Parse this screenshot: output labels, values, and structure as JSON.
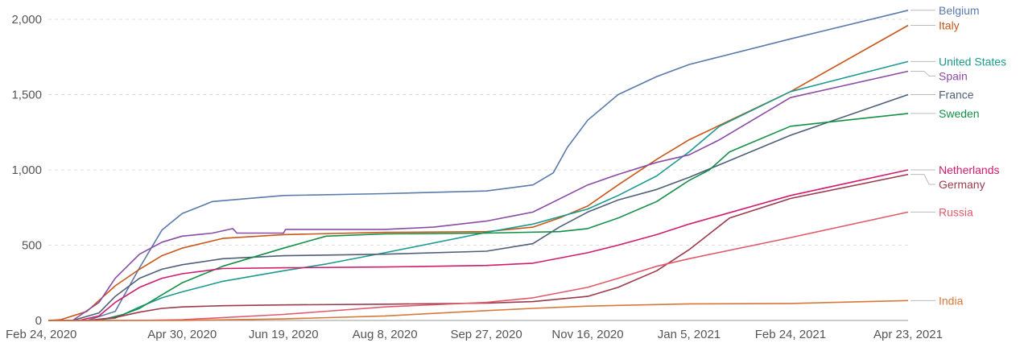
{
  "chart_data": {
    "type": "line",
    "x_type": "date",
    "x_range": [
      "2020-02-24",
      "2021-04-23"
    ],
    "x_ticks": [
      "2020-02-24",
      "2020-04-30",
      "2020-06-19",
      "2020-08-08",
      "2020-09-27",
      "2020-11-16",
      "2021-01-05",
      "2021-02-24",
      "2021-04-23"
    ],
    "x_tick_labels": [
      "Feb 24, 2020",
      "Apr 30, 2020",
      "Jun 19, 2020",
      "Aug 8, 2020",
      "Sep 27, 2020",
      "Nov 16, 2020",
      "Jan 5, 2021",
      "Feb 24, 2021",
      "Apr 23, 2021"
    ],
    "ylim": [
      0,
      2000
    ],
    "y_ticks": [
      0,
      500,
      1000,
      1500,
      2000
    ],
    "y_tick_labels": [
      "0",
      "500",
      "1,000",
      "1,500",
      "2,000"
    ],
    "grid": "horizontal dashed",
    "legend": "right, labels at line ends",
    "series": [
      {
        "name": "Belgium",
        "color": "#5a7aab",
        "points": [
          [
            "2020-02-24",
            0
          ],
          [
            "2020-03-14",
            0
          ],
          [
            "2020-03-28",
            60
          ],
          [
            "2020-04-09",
            350
          ],
          [
            "2020-04-20",
            600
          ],
          [
            "2020-04-30",
            710
          ],
          [
            "2020-05-15",
            790
          ],
          [
            "2020-06-19",
            830
          ],
          [
            "2020-08-08",
            842
          ],
          [
            "2020-09-27",
            860
          ],
          [
            "2020-10-20",
            900
          ],
          [
            "2020-10-30",
            980
          ],
          [
            "2020-11-06",
            1150
          ],
          [
            "2020-11-16",
            1330
          ],
          [
            "2020-12-01",
            1500
          ],
          [
            "2020-12-20",
            1620
          ],
          [
            "2021-01-05",
            1700
          ],
          [
            "2021-02-24",
            1870
          ],
          [
            "2021-04-23",
            2060
          ]
        ]
      },
      {
        "name": "Italy",
        "color": "#c8571a",
        "points": [
          [
            "2020-02-24",
            0
          ],
          [
            "2020-03-01",
            5
          ],
          [
            "2020-03-14",
            60
          ],
          [
            "2020-03-28",
            230
          ],
          [
            "2020-04-09",
            340
          ],
          [
            "2020-04-20",
            430
          ],
          [
            "2020-04-30",
            480
          ],
          [
            "2020-05-20",
            545
          ],
          [
            "2020-06-19",
            570
          ],
          [
            "2020-08-08",
            585
          ],
          [
            "2020-09-27",
            590
          ],
          [
            "2020-10-20",
            620
          ],
          [
            "2020-11-02",
            680
          ],
          [
            "2020-11-16",
            760
          ],
          [
            "2020-12-01",
            900
          ],
          [
            "2020-12-20",
            1070
          ],
          [
            "2021-01-05",
            1200
          ],
          [
            "2021-02-24",
            1520
          ],
          [
            "2021-04-23",
            1960
          ]
        ]
      },
      {
        "name": "United States",
        "color": "#1d9a8f",
        "points": [
          [
            "2020-02-24",
            0
          ],
          [
            "2020-03-14",
            0
          ],
          [
            "2020-03-28",
            15
          ],
          [
            "2020-04-09",
            90
          ],
          [
            "2020-04-20",
            150
          ],
          [
            "2020-04-30",
            190
          ],
          [
            "2020-05-20",
            260
          ],
          [
            "2020-06-19",
            330
          ],
          [
            "2020-07-10",
            375
          ],
          [
            "2020-08-08",
            450
          ],
          [
            "2020-09-27",
            585
          ],
          [
            "2020-10-20",
            640
          ],
          [
            "2020-11-16",
            740
          ],
          [
            "2020-12-01",
            830
          ],
          [
            "2020-12-20",
            960
          ],
          [
            "2021-01-05",
            1120
          ],
          [
            "2021-01-20",
            1290
          ],
          [
            "2021-02-24",
            1520
          ],
          [
            "2021-04-23",
            1720
          ]
        ]
      },
      {
        "name": "Spain",
        "color": "#8a4ba6",
        "points": [
          [
            "2020-02-24",
            0
          ],
          [
            "2020-03-07",
            0
          ],
          [
            "2020-03-20",
            120
          ],
          [
            "2020-03-28",
            280
          ],
          [
            "2020-04-09",
            440
          ],
          [
            "2020-04-20",
            520
          ],
          [
            "2020-04-30",
            560
          ],
          [
            "2020-05-15",
            580
          ],
          [
            "2020-05-25",
            610
          ],
          [
            "2020-05-27",
            580
          ],
          [
            "2020-06-19",
            580
          ],
          [
            "2020-06-20",
            605
          ],
          [
            "2020-08-08",
            605
          ],
          [
            "2020-09-01",
            620
          ],
          [
            "2020-09-27",
            660
          ],
          [
            "2020-10-20",
            720
          ],
          [
            "2020-11-16",
            900
          ],
          [
            "2020-12-01",
            970
          ],
          [
            "2020-12-20",
            1050
          ],
          [
            "2021-01-05",
            1100
          ],
          [
            "2021-01-20",
            1200
          ],
          [
            "2021-02-24",
            1480
          ],
          [
            "2021-04-23",
            1655
          ]
        ]
      },
      {
        "name": "France",
        "color": "#4e5f7a",
        "points": [
          [
            "2020-02-24",
            0
          ],
          [
            "2020-03-07",
            0
          ],
          [
            "2020-03-20",
            50
          ],
          [
            "2020-03-28",
            160
          ],
          [
            "2020-04-09",
            280
          ],
          [
            "2020-04-20",
            340
          ],
          [
            "2020-04-30",
            370
          ],
          [
            "2020-05-20",
            410
          ],
          [
            "2020-06-19",
            430
          ],
          [
            "2020-08-08",
            440
          ],
          [
            "2020-09-27",
            460
          ],
          [
            "2020-10-20",
            510
          ],
          [
            "2020-11-02",
            620
          ],
          [
            "2020-11-16",
            720
          ],
          [
            "2020-12-01",
            800
          ],
          [
            "2020-12-20",
            870
          ],
          [
            "2021-01-05",
            950
          ],
          [
            "2021-02-24",
            1230
          ],
          [
            "2021-04-23",
            1500
          ]
        ]
      },
      {
        "name": "Sweden",
        "color": "#139046",
        "points": [
          [
            "2020-02-24",
            0
          ],
          [
            "2020-03-20",
            0
          ],
          [
            "2020-04-01",
            40
          ],
          [
            "2020-04-09",
            80
          ],
          [
            "2020-04-20",
            170
          ],
          [
            "2020-04-30",
            250
          ],
          [
            "2020-05-20",
            360
          ],
          [
            "2020-06-19",
            480
          ],
          [
            "2020-07-10",
            560
          ],
          [
            "2020-08-08",
            575
          ],
          [
            "2020-09-27",
            580
          ],
          [
            "2020-11-02",
            590
          ],
          [
            "2020-11-16",
            610
          ],
          [
            "2020-12-01",
            680
          ],
          [
            "2020-12-20",
            790
          ],
          [
            "2021-01-05",
            930
          ],
          [
            "2021-01-15",
            1000
          ],
          [
            "2021-01-25",
            1120
          ],
          [
            "2021-02-24",
            1290
          ],
          [
            "2021-04-23",
            1375
          ]
        ]
      },
      {
        "name": "Netherlands",
        "color": "#d01b6e",
        "points": [
          [
            "2020-02-24",
            0
          ],
          [
            "2020-03-10",
            0
          ],
          [
            "2020-03-20",
            30
          ],
          [
            "2020-03-28",
            120
          ],
          [
            "2020-04-09",
            220
          ],
          [
            "2020-04-20",
            280
          ],
          [
            "2020-04-30",
            310
          ],
          [
            "2020-05-20",
            345
          ],
          [
            "2020-06-19",
            350
          ],
          [
            "2020-08-08",
            355
          ],
          [
            "2020-09-27",
            365
          ],
          [
            "2020-10-20",
            380
          ],
          [
            "2020-11-16",
            450
          ],
          [
            "2020-12-01",
            500
          ],
          [
            "2020-12-20",
            570
          ],
          [
            "2021-01-05",
            640
          ],
          [
            "2021-02-24",
            830
          ],
          [
            "2021-04-23",
            1000
          ]
        ]
      },
      {
        "name": "Germany",
        "color": "#9a3a4a",
        "points": [
          [
            "2020-02-24",
            0
          ],
          [
            "2020-03-14",
            0
          ],
          [
            "2020-03-28",
            20
          ],
          [
            "2020-04-09",
            55
          ],
          [
            "2020-04-20",
            80
          ],
          [
            "2020-04-30",
            90
          ],
          [
            "2020-05-20",
            98
          ],
          [
            "2020-06-19",
            103
          ],
          [
            "2020-08-08",
            108
          ],
          [
            "2020-09-27",
            115
          ],
          [
            "2020-10-20",
            125
          ],
          [
            "2020-11-16",
            160
          ],
          [
            "2020-12-01",
            220
          ],
          [
            "2020-12-20",
            330
          ],
          [
            "2021-01-05",
            470
          ],
          [
            "2021-01-25",
            680
          ],
          [
            "2021-02-24",
            810
          ],
          [
            "2021-04-23",
            970
          ]
        ]
      },
      {
        "name": "Russia",
        "color": "#e05a6a",
        "points": [
          [
            "2020-02-24",
            0
          ],
          [
            "2020-04-09",
            0
          ],
          [
            "2020-04-30",
            5
          ],
          [
            "2020-06-19",
            40
          ],
          [
            "2020-08-08",
            90
          ],
          [
            "2020-09-27",
            120
          ],
          [
            "2020-10-20",
            150
          ],
          [
            "2020-11-16",
            220
          ],
          [
            "2020-12-01",
            280
          ],
          [
            "2020-12-20",
            360
          ],
          [
            "2021-01-05",
            410
          ],
          [
            "2021-02-24",
            550
          ],
          [
            "2021-04-23",
            720
          ]
        ]
      },
      {
        "name": "India",
        "color": "#d9773a",
        "points": [
          [
            "2020-02-24",
            0
          ],
          [
            "2020-04-30",
            0
          ],
          [
            "2020-06-19",
            10
          ],
          [
            "2020-08-08",
            30
          ],
          [
            "2020-09-27",
            65
          ],
          [
            "2020-10-20",
            80
          ],
          [
            "2020-11-16",
            95
          ],
          [
            "2020-12-01",
            100
          ],
          [
            "2021-01-05",
            110
          ],
          [
            "2021-02-24",
            113
          ],
          [
            "2021-04-23",
            132
          ]
        ]
      }
    ]
  }
}
